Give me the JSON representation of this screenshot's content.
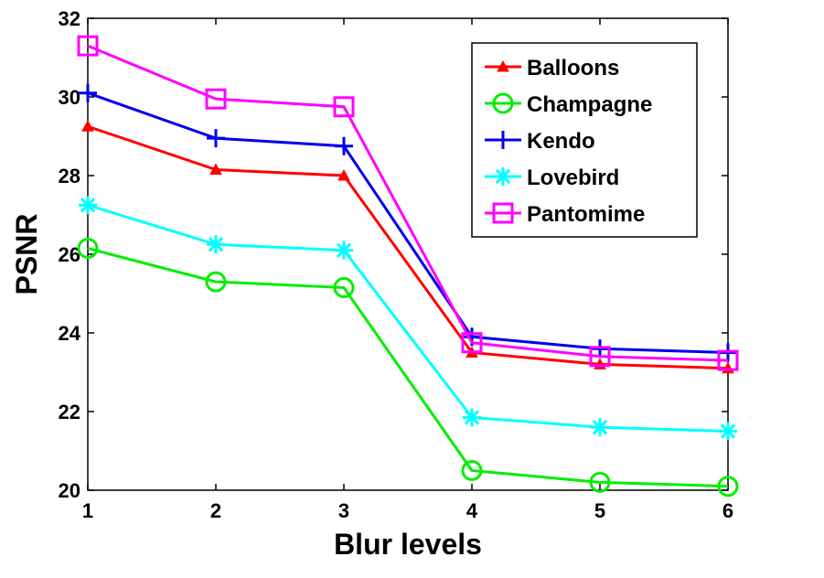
{
  "chart_data": {
    "type": "line",
    "xlabel": "Blur levels",
    "ylabel": "PSNR",
    "x": [
      1,
      2,
      3,
      4,
      5,
      6
    ],
    "xlim": [
      1,
      6
    ],
    "ylim": [
      20,
      32
    ],
    "xticks": [
      "1",
      "2",
      "3",
      "4",
      "5",
      "6"
    ],
    "yticks": [
      "20",
      "22",
      "24",
      "26",
      "28",
      "30",
      "32"
    ],
    "grid": false,
    "legend_position": "top-right",
    "series": [
      {
        "name": "Balloons",
        "color": "#ff0000",
        "marker": "triangle",
        "values": [
          29.25,
          28.15,
          28.0,
          23.5,
          23.2,
          23.1
        ]
      },
      {
        "name": "Champagne",
        "color": "#00ee00",
        "marker": "circle",
        "values": [
          26.15,
          25.3,
          25.15,
          20.5,
          20.2,
          20.1
        ]
      },
      {
        "name": "Kendo",
        "color": "#0000ee",
        "marker": "plus",
        "values": [
          30.1,
          28.95,
          28.75,
          23.9,
          23.6,
          23.5
        ]
      },
      {
        "name": "Lovebird",
        "color": "#00ffff",
        "marker": "asterisk",
        "values": [
          27.25,
          26.25,
          26.1,
          21.85,
          21.6,
          21.5
        ]
      },
      {
        "name": "Pantomime",
        "color": "#ff00ff",
        "marker": "square",
        "values": [
          31.3,
          29.95,
          29.75,
          23.75,
          23.4,
          23.3
        ]
      }
    ]
  }
}
